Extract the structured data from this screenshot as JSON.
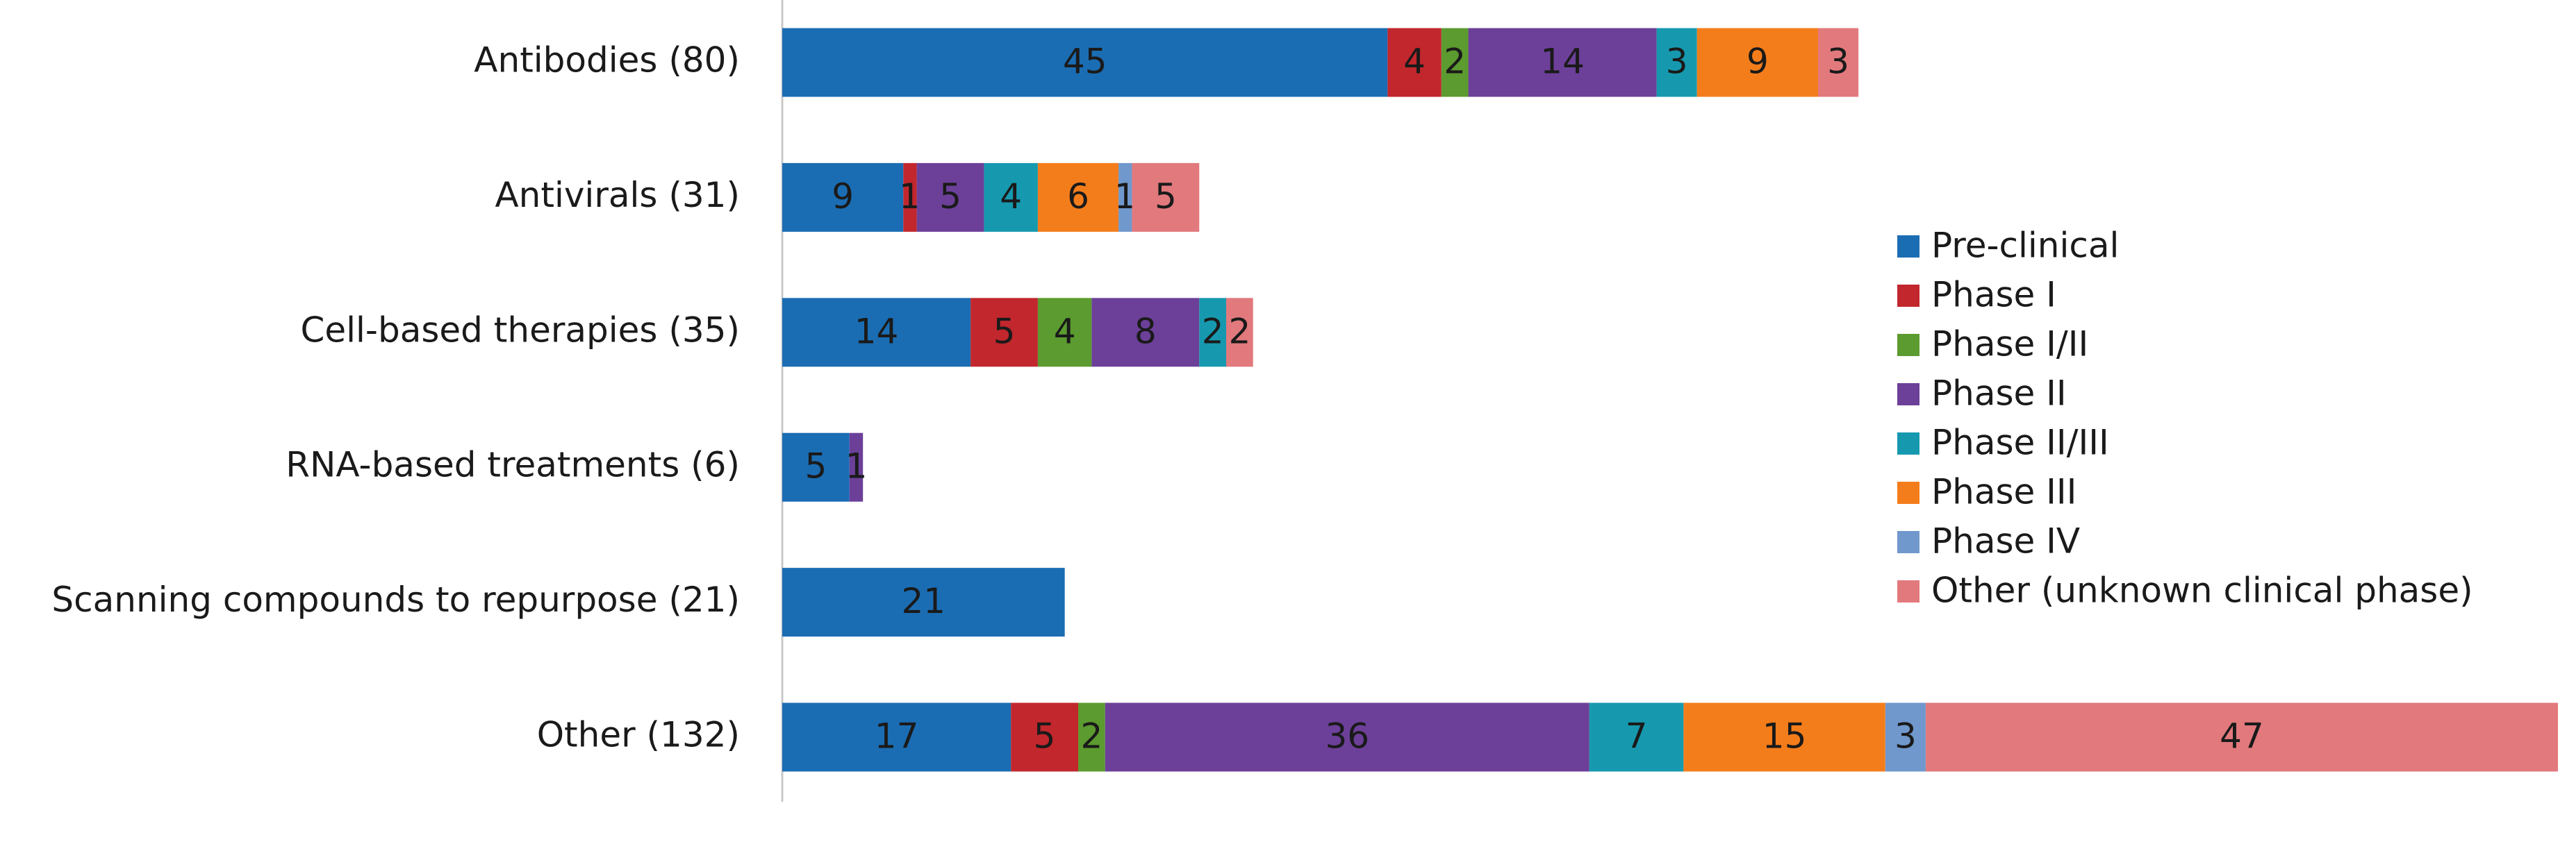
{
  "chart_data": {
    "type": "stacked-bar-horizontal",
    "categories": [
      "Antibodies (80)",
      "Antivirals (31)",
      "Cell-based therapies (35)",
      "RNA-based treatments (6)",
      "Scanning compounds to repurpose (21)",
      "Other (132)"
    ],
    "series": [
      {
        "name": "Pre-clinical",
        "color": "#1b6db3",
        "values": [
          45,
          9,
          14,
          5,
          21,
          17
        ]
      },
      {
        "name": "Phase I",
        "color": "#c1272d",
        "values": [
          4,
          1,
          5,
          null,
          null,
          5
        ]
      },
      {
        "name": "Phase I/II",
        "color": "#5c9b2f",
        "values": [
          2,
          null,
          4,
          null,
          null,
          2
        ]
      },
      {
        "name": "Phase II",
        "color": "#6c4099",
        "values": [
          14,
          5,
          8,
          1,
          null,
          36
        ]
      },
      {
        "name": "Phase II/III",
        "color": "#1699af",
        "values": [
          3,
          4,
          2,
          null,
          null,
          7
        ]
      },
      {
        "name": "Phase III",
        "color": "#f47d1b",
        "values": [
          9,
          6,
          null,
          null,
          null,
          15
        ]
      },
      {
        "name": "Phase IV",
        "color": "#7098cc",
        "values": [
          null,
          1,
          null,
          null,
          null,
          3
        ]
      },
      {
        "name": "Other (unknown clinical phase)",
        "color": "#e2797d",
        "values": [
          3,
          5,
          2,
          null,
          null,
          47
        ]
      }
    ]
  }
}
